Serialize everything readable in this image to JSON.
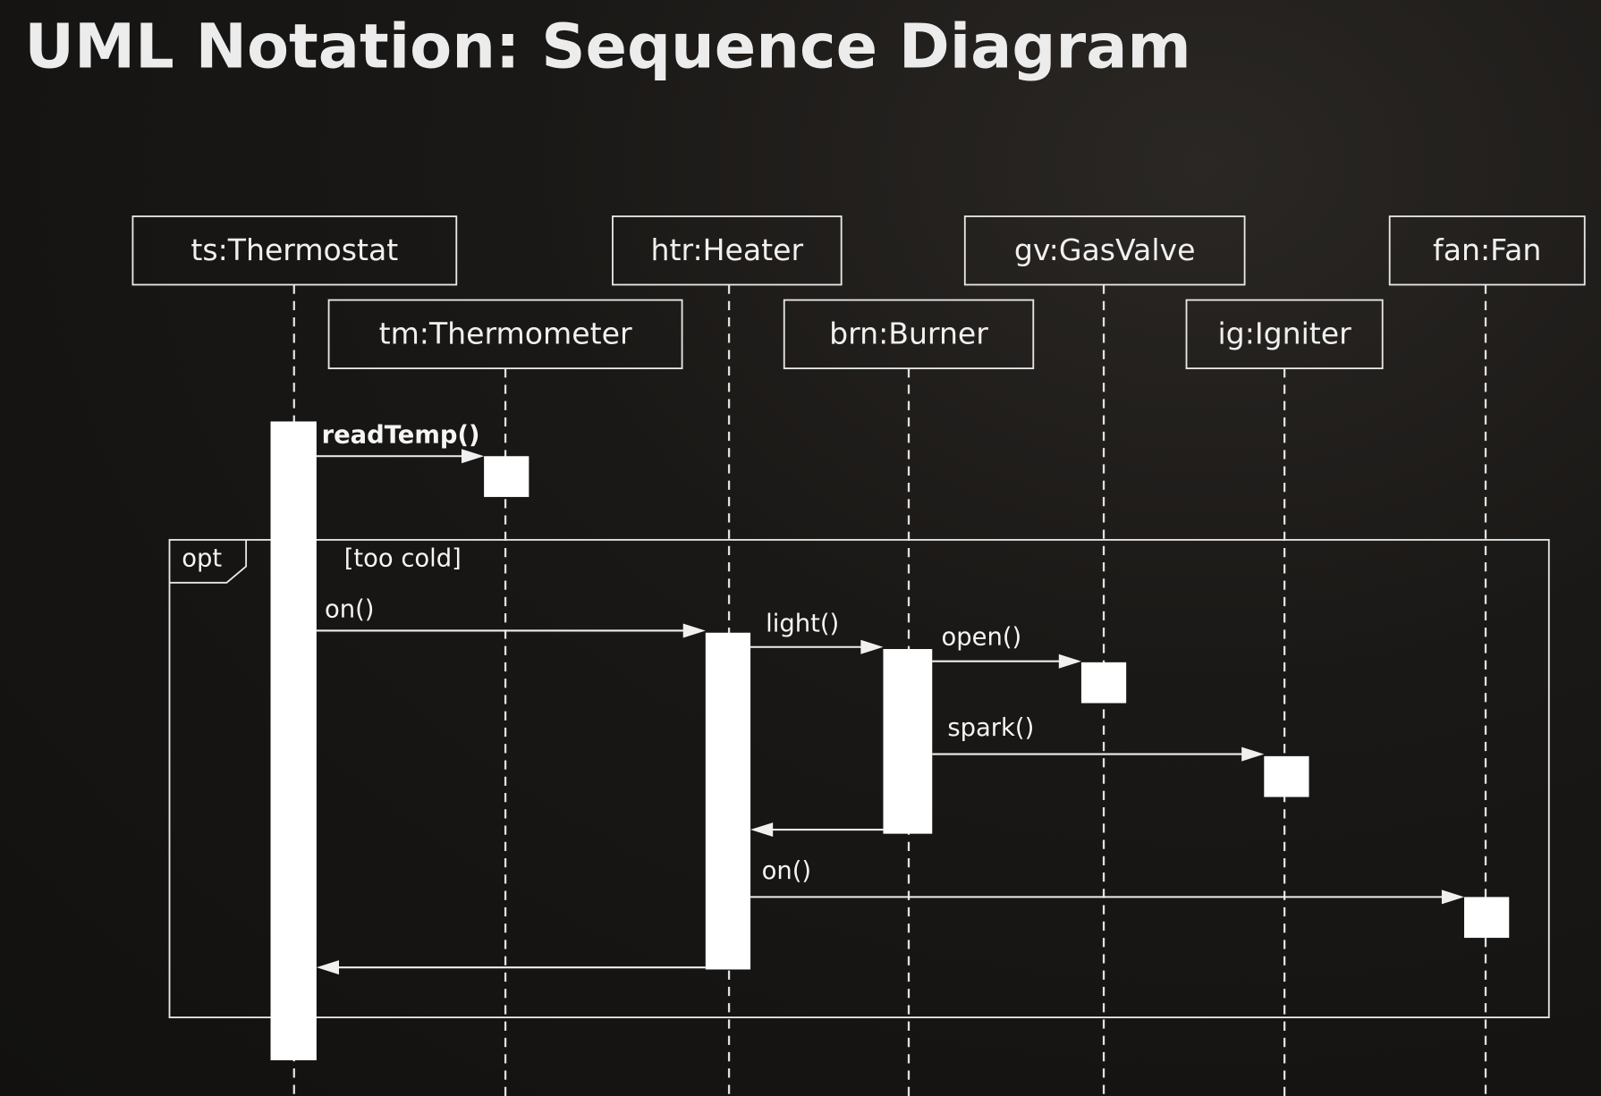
{
  "title": "UML Notation: Sequence Diagram",
  "participants": [
    {
      "id": "ts",
      "label": "ts:Thermostat"
    },
    {
      "id": "tm",
      "label": "tm:Thermometer"
    },
    {
      "id": "htr",
      "label": "htr:Heater"
    },
    {
      "id": "brn",
      "label": "brn:Burner"
    },
    {
      "id": "gv",
      "label": "gv:GasValve"
    },
    {
      "id": "ig",
      "label": "ig:Igniter"
    },
    {
      "id": "fan",
      "label": "fan:Fan"
    }
  ],
  "fragment": {
    "operator": "opt",
    "guard": "[too cold]"
  },
  "messages": [
    {
      "from": "ts",
      "to": "tm",
      "label": "readTemp()",
      "type": "call"
    },
    {
      "from": "ts",
      "to": "htr",
      "label": "on()",
      "type": "call"
    },
    {
      "from": "htr",
      "to": "brn",
      "label": "light()",
      "type": "call"
    },
    {
      "from": "brn",
      "to": "gv",
      "label": "open()",
      "type": "call"
    },
    {
      "from": "brn",
      "to": "ig",
      "label": "spark()",
      "type": "call"
    },
    {
      "from": "brn",
      "to": "htr",
      "label": "",
      "type": "return"
    },
    {
      "from": "htr",
      "to": "fan",
      "label": "on()",
      "type": "call"
    },
    {
      "from": "htr",
      "to": "ts",
      "label": "",
      "type": "return"
    }
  ],
  "colors": {
    "background": "#161412",
    "foreground": "#ffffff"
  }
}
